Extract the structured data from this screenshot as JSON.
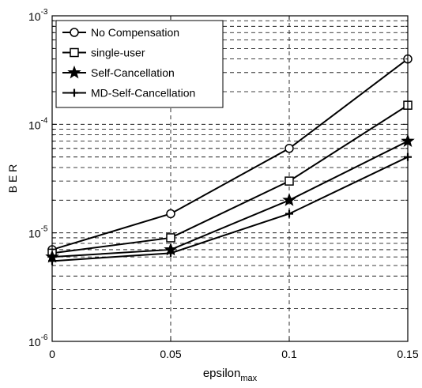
{
  "chart_data": {
    "type": "line",
    "title": "",
    "xlabel": "epsilon",
    "xlabel_subscript": "max",
    "ylabel": "B E R",
    "x": [
      0,
      0.05,
      0.1,
      0.15
    ],
    "xlim": [
      0,
      0.15
    ],
    "ylim": [
      1e-06,
      0.001
    ],
    "yscale": "log",
    "grid": "major and minor, dashed",
    "x_tick_labels": [
      "0",
      "0.05",
      "0.1",
      "0.15"
    ],
    "y_ticks": [
      {
        "value": 1e-06,
        "base": "10",
        "exp": "-6"
      },
      {
        "value": 1e-05,
        "base": "10",
        "exp": "-5"
      },
      {
        "value": 0.0001,
        "base": "10",
        "exp": "-4"
      },
      {
        "value": 0.001,
        "base": "10",
        "exp": "-3"
      }
    ],
    "legend_position": "top-left",
    "series": [
      {
        "name": "No Compensation",
        "marker": "circle",
        "values": [
          7e-06,
          1.5e-05,
          6e-05,
          0.0004
        ]
      },
      {
        "name": "single-user",
        "marker": "square",
        "values": [
          6.5e-06,
          9e-06,
          3e-05,
          0.00015
        ]
      },
      {
        "name": "Self-Cancellation",
        "marker": "star",
        "values": [
          6e-06,
          7e-06,
          2e-05,
          7e-05
        ]
      },
      {
        "name": "MD-Self-Cancellation",
        "marker": "plus",
        "values": [
          5.5e-06,
          6.5e-06,
          1.5e-05,
          5e-05
        ]
      }
    ]
  }
}
